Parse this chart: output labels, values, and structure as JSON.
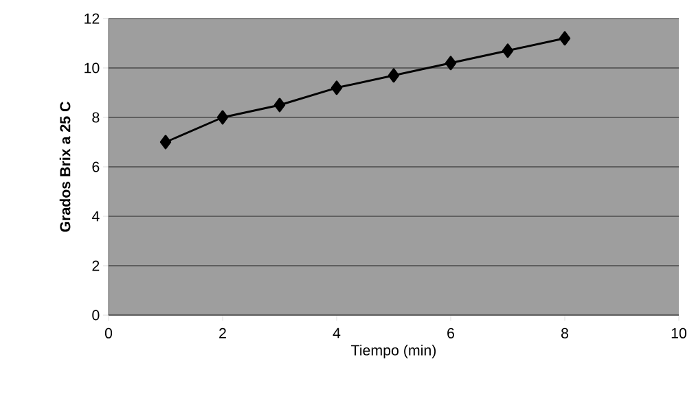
{
  "chart_data": {
    "type": "line",
    "xlabel": "Tiempo (min)",
    "ylabel": "Grados Brix a 25 C",
    "x": [
      1,
      2,
      3,
      4,
      5,
      6,
      7,
      8
    ],
    "series": [
      {
        "color": "#000000",
        "values": [
          7.0,
          8.0,
          8.5,
          9.2,
          9.7,
          10.2,
          10.7,
          11.2
        ]
      }
    ],
    "xlim": [
      0,
      10
    ],
    "xticks": [
      0,
      2,
      4,
      6,
      8,
      10
    ],
    "ylim": [
      0,
      12
    ],
    "yticks": [
      0,
      2,
      4,
      6,
      8,
      10,
      12
    ],
    "grid": "y",
    "marker": "diamond",
    "line_style": "solid"
  }
}
